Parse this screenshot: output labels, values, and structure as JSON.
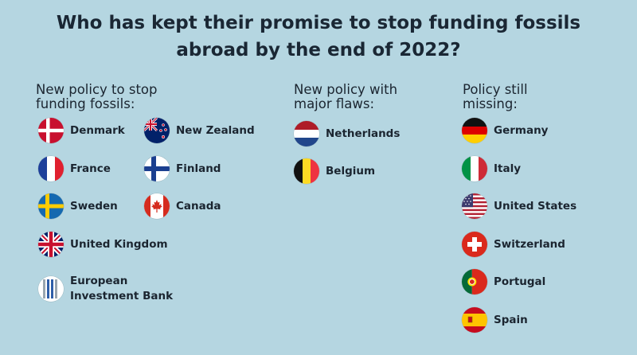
{
  "title": {
    "line1": "Who has kept their promise to stop funding fossils",
    "line2": "abroad by the end of 2022?"
  },
  "columns": [
    {
      "heading": [
        "New policy to stop",
        "funding fossils:"
      ],
      "items": [
        {
          "name": "Denmark",
          "flag": "denmark-flag-icon"
        },
        {
          "name": "New Zealand",
          "flag": "new-zealand-flag-icon"
        },
        {
          "name": "France",
          "flag": "france-flag-icon"
        },
        {
          "name": "Finland",
          "flag": "finland-flag-icon"
        },
        {
          "name": "Sweden",
          "flag": "sweden-flag-icon"
        },
        {
          "name": "Canada",
          "flag": "canada-flag-icon"
        },
        {
          "name": "United Kingdom",
          "flag": "united-kingdom-flag-icon"
        },
        {
          "name": [
            "European",
            "Investment Bank"
          ],
          "flag": "european-investment-bank-logo-icon"
        }
      ]
    },
    {
      "heading": [
        "New policy with",
        "major flaws:"
      ],
      "items": [
        {
          "name": "Netherlands",
          "flag": "netherlands-flag-icon"
        },
        {
          "name": "Belgium",
          "flag": "belgium-flag-icon"
        }
      ]
    },
    {
      "heading": [
        "Policy still",
        "missing:"
      ],
      "items": [
        {
          "name": "Germany",
          "flag": "germany-flag-icon"
        },
        {
          "name": "Italy",
          "flag": "italy-flag-icon"
        },
        {
          "name": "United States",
          "flag": "united-states-flag-icon"
        },
        {
          "name": "Switzerland",
          "flag": "switzerland-flag-icon"
        },
        {
          "name": "Portugal",
          "flag": "portugal-flag-icon"
        },
        {
          "name": "Spain",
          "flag": "spain-flag-icon"
        }
      ]
    }
  ],
  "colors": {
    "background": "#b5d6e1",
    "text": "#1b2530"
  }
}
